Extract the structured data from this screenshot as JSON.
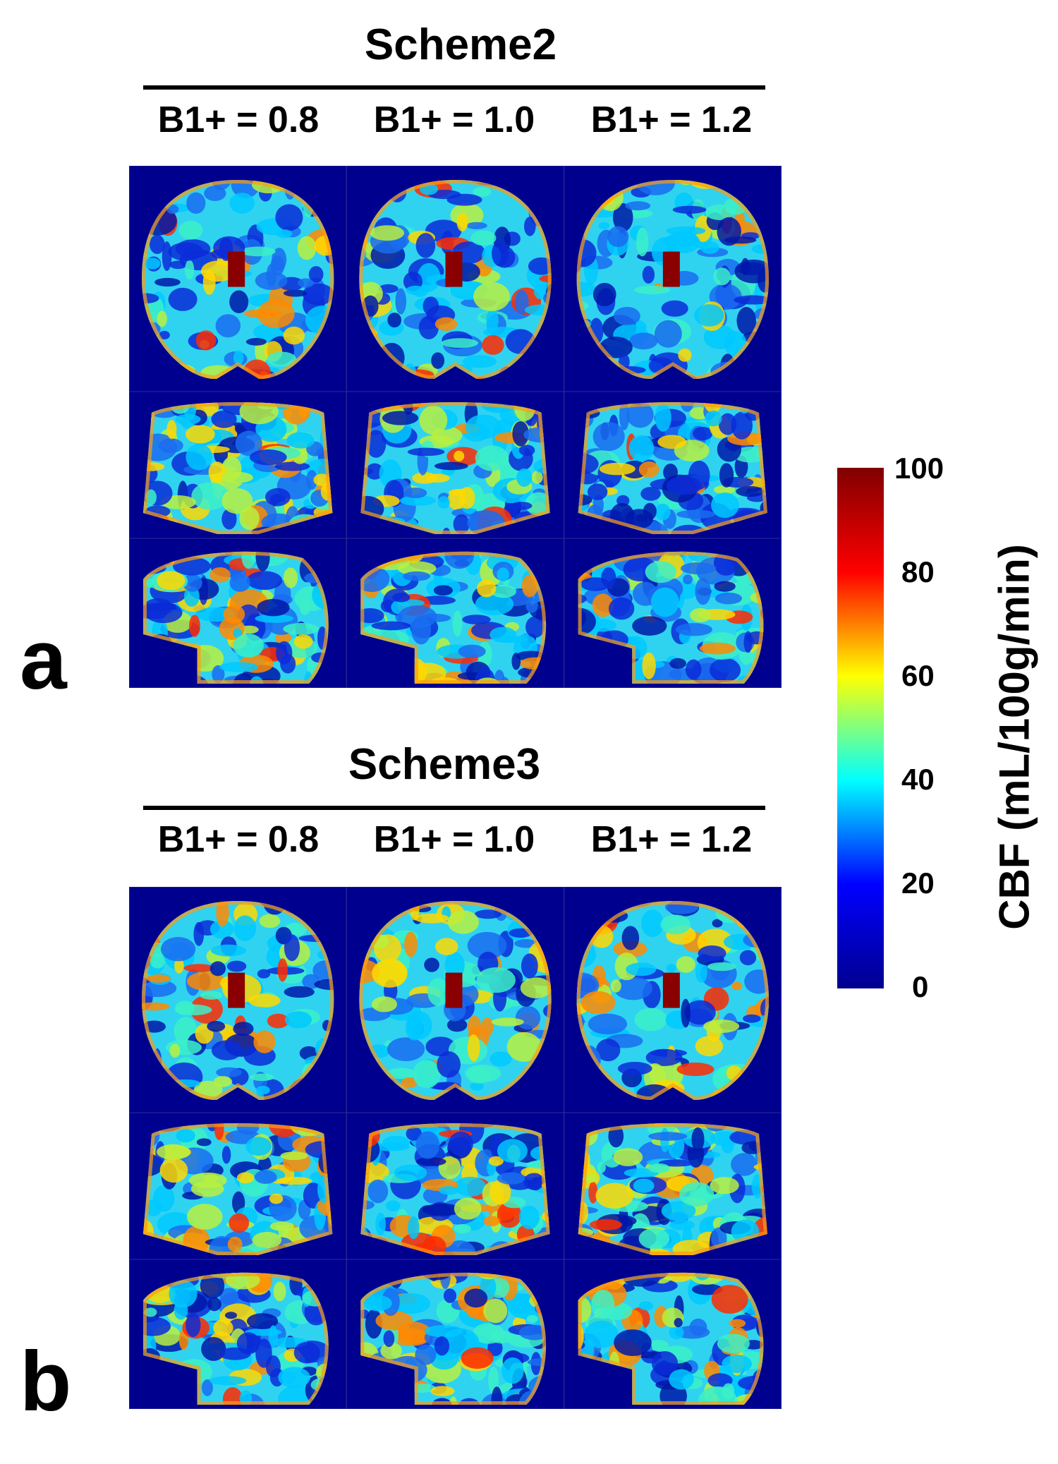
{
  "panels": [
    {
      "letter": "a",
      "title": "Scheme2",
      "column_labels": [
        "B1+ = 0.8",
        "B1+ = 1.0",
        "B1+ = 1.2"
      ]
    },
    {
      "letter": "b",
      "title": "Scheme3",
      "column_labels": [
        "B1+ = 0.8",
        "B1+ = 1.0",
        "B1+ = 1.2"
      ]
    }
  ],
  "colorbar": {
    "title": "CBF (mL/100g/min)",
    "ticks": [
      "100",
      "80",
      "60",
      "40",
      "20",
      "0"
    ],
    "colormap": "jet",
    "range": [
      0,
      100
    ],
    "colors": [
      "#00008f",
      "#0000ff",
      "#00ffff",
      "#ffff00",
      "#ff0000",
      "#800000"
    ]
  },
  "background_color": "#00008f"
}
